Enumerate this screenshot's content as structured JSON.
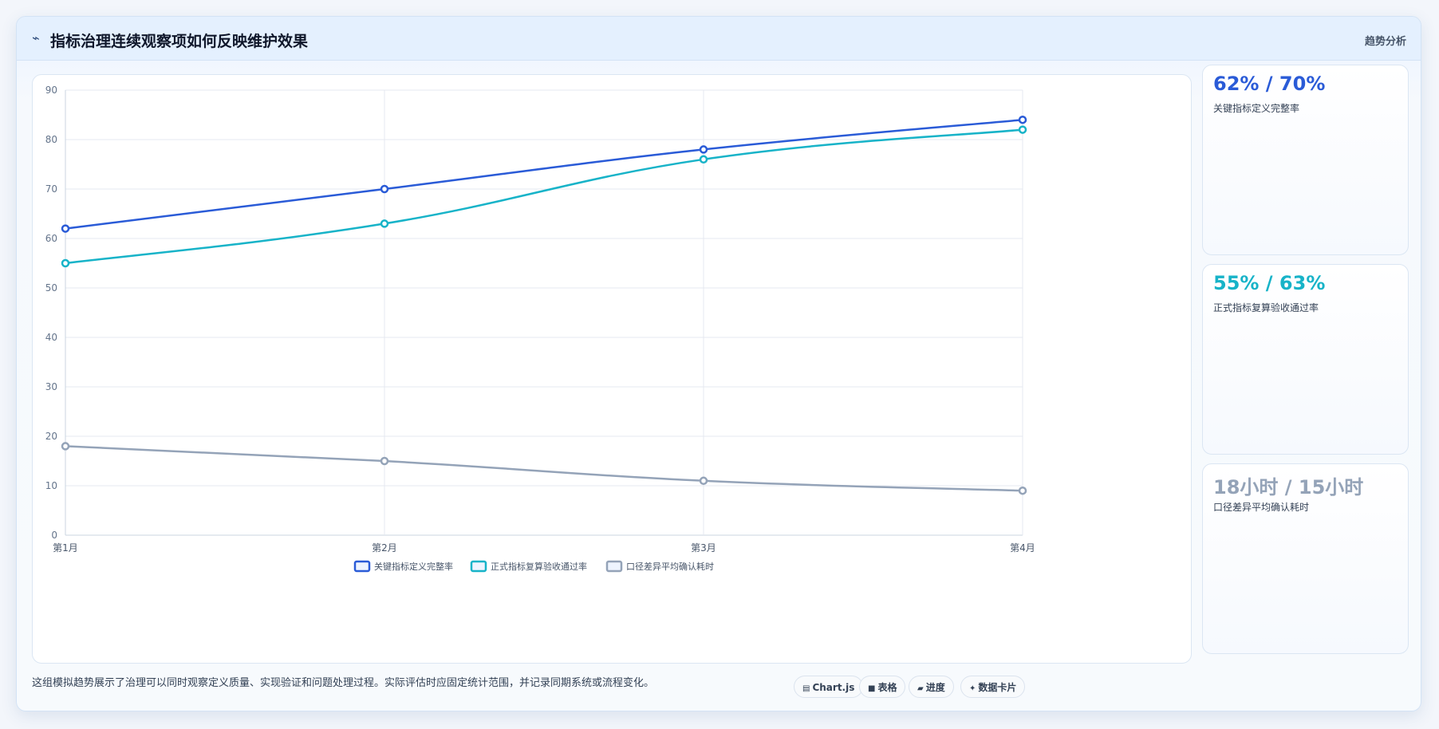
{
  "header": {
    "icon": "trend-line-icon",
    "title": "指标治理连续观察项如何反映维护效果",
    "tag": "趋势分析"
  },
  "stats": [
    {
      "value": "62% / 70%",
      "label": "关键指标定义完整率",
      "color": "#2a5bd7"
    },
    {
      "value": "55% / 63%",
      "label": "正式指标复算验收通过率",
      "color": "#17b3c8"
    },
    {
      "value": "18小时 / 15小时",
      "label": "口径差异平均确认耗时",
      "color": "#94a3b8"
    }
  ],
  "footer": {
    "text": "这组模拟趋势展示了治理可以同时观察定义质量、实现验证和问题处理过程。实际评估时应固定统计范围，并记录同期系统或流程变化。",
    "pills": [
      {
        "icon": "chart-icon",
        "glyph": "▤",
        "label": "Chart.js"
      },
      {
        "icon": "table-icon",
        "glyph": "■",
        "label": "表格"
      },
      {
        "icon": "progress-icon",
        "glyph": "▰",
        "label": "进度"
      },
      {
        "icon": "data-card-icon",
        "glyph": "✦",
        "label": "数据卡片"
      }
    ]
  },
  "chart_data": {
    "type": "line",
    "categories": [
      "第1月",
      "第2月",
      "第3月",
      "第4月"
    ],
    "ylim": [
      0,
      90
    ],
    "yticks": [
      0,
      10,
      20,
      30,
      40,
      50,
      60,
      70,
      80,
      90
    ],
    "grid": true,
    "legend": "bottom",
    "series": [
      {
        "name": "关键指标定义完整率",
        "values": [
          62,
          70,
          78,
          84
        ],
        "color": "#2a5bd7"
      },
      {
        "name": "正式指标复算验收通过率",
        "values": [
          55,
          63,
          76,
          82
        ],
        "color": "#17b3c8"
      },
      {
        "name": "口径差异平均确认耗时",
        "values": [
          18,
          15,
          11,
          9
        ],
        "color": "#94a3b8"
      }
    ]
  }
}
